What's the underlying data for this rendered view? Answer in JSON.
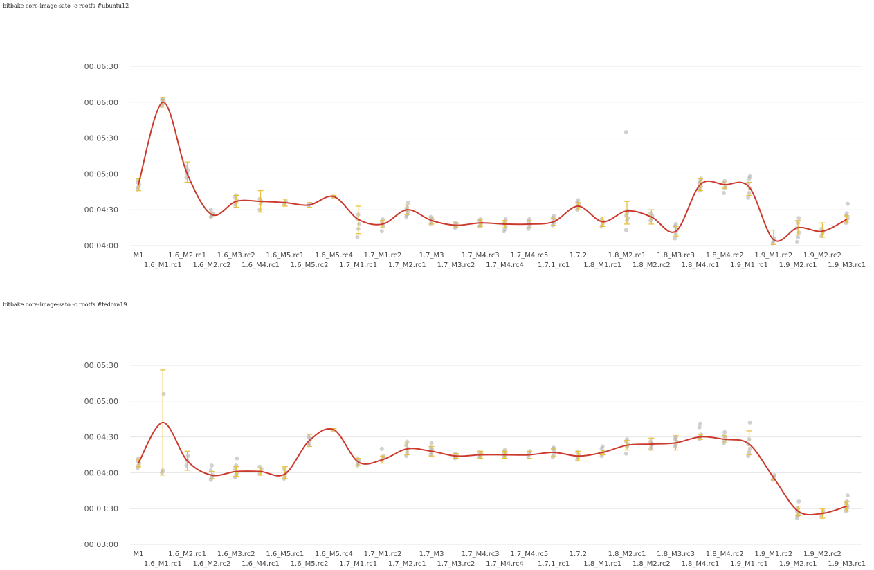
{
  "captions": {
    "chart1": "bitbake core-image-sato -c rootfs #ubuntu12",
    "chart2": "bitbake core-image-sato -c rootfs #fedora19"
  },
  "colors": {
    "line": "#cc3a2e",
    "errorbar": "#e8c040",
    "samples": "#9a9a9a",
    "grid": "#e6e6e6"
  },
  "chart_data": [
    {
      "type": "line",
      "title": "bitbake core-image-sato -c rootfs #ubuntu12",
      "ylabel": "",
      "xlabel": "",
      "ylim": [
        240,
        390
      ],
      "yticks": [
        "00:04:00",
        "00:04:30",
        "00:05:00",
        "00:05:30",
        "00:06:00",
        "00:06:30"
      ],
      "grid": true,
      "categories": [
        "M1",
        "1.6_M1.rc1",
        "1.6_M2.rc1",
        "1.6_M2.rc2",
        "1.6_M3.rc2",
        "1.6_M4.rc1",
        "1.6_M5.rc1",
        "1.6_M5.rc2",
        "1.6_M5.rc4",
        "1.7_M1.rc1",
        "1.7_M1.rc2",
        "1.7_M2.rc1",
        "1.7_M3",
        "1.7_M3.rc2",
        "1.7_M4.rc3",
        "1.7_M4.rc4",
        "1.7_M4.rc5",
        "1.7.1_rc1",
        "1.7.2",
        "1.8_M1.rc1",
        "1.8_M2.rc1",
        "1.8_M2.rc2",
        "1.8_M3.rc3",
        "1.8_M4.rc1",
        "1.8_M4.rc2",
        "1.9_M1.rc1",
        "1.9_M1.rc2",
        "1.9_M2.rc1",
        "1.9_M2.rc2",
        "1.9_M3.rc1"
      ],
      "series": [
        {
          "values": [
            291,
            360,
            300,
            266,
            277,
            277,
            276,
            274,
            281,
            262,
            258,
            270,
            261,
            257,
            259,
            258,
            258,
            260,
            273,
            260,
            269,
            264,
            252,
            291,
            291,
            289,
            245,
            255,
            252,
            262
          ],
          "error": [
            [
              286,
              296
            ],
            [
              356,
              364
            ],
            [
              293,
              310
            ],
            [
              264,
              268
            ],
            [
              272,
              282
            ],
            [
              268,
              286
            ],
            [
              273,
              279
            ],
            [
              272,
              276
            ],
            [
              280,
              282
            ],
            [
              250,
              273
            ],
            [
              255,
              261
            ],
            [
              266,
              274
            ],
            [
              258,
              264
            ],
            [
              255,
              259
            ],
            [
              256,
              262
            ],
            [
              255,
              261
            ],
            [
              255,
              261
            ],
            [
              257,
              263
            ],
            [
              270,
              276
            ],
            [
              256,
              264
            ],
            [
              258,
              277
            ],
            [
              258,
              270
            ],
            [
              248,
              256
            ],
            [
              286,
              296
            ],
            [
              288,
              294
            ],
            [
              282,
              293
            ],
            [
              241,
              253
            ],
            [
              249,
              261
            ],
            [
              247,
              259
            ],
            [
              259,
              265
            ]
          ],
          "samples": [
            [
              287,
              289,
              291,
              293,
              295
            ],
            [
              357,
              359,
              361,
              362,
              363
            ],
            [
              297,
              300,
              303,
              306
            ],
            [
              264,
              265,
              267,
              270
            ],
            [
              274,
              276,
              278,
              280,
              282
            ],
            [
              270,
              275,
              277,
              279
            ],
            [
              275,
              276,
              277
            ],
            [
              273,
              275
            ],
            [
              281
            ],
            [
              247,
              254,
              258,
              262,
              266
            ],
            [
              252,
              256,
              258,
              260,
              262
            ],
            [
              264,
              266,
              268,
              270,
              272,
              276
            ],
            [
              258,
              260,
              262,
              264
            ],
            [
              255,
              256,
              258,
              259
            ],
            [
              256,
              257,
              259,
              261,
              262
            ],
            [
              252,
              254,
              256,
              258,
              260,
              262
            ],
            [
              254,
              256,
              258,
              260,
              262
            ],
            [
              257,
              259,
              261,
              263,
              265
            ],
            [
              270,
              272,
              274,
              276,
              278
            ],
            [
              256,
              258,
              260,
              262
            ],
            [
              253,
              261,
              263,
              265,
              267,
              269,
              335
            ],
            [
              261,
              263,
              265,
              267
            ],
            [
              246,
              250,
              253,
              256,
              258
            ],
            [
              286,
              288,
              290,
              292,
              294,
              296
            ],
            [
              284,
              288,
              290,
              292,
              294
            ],
            [
              280,
              284,
              288,
              292,
              296,
              298
            ],
            [
              242,
              244,
              246
            ],
            [
              243,
              247,
              251,
              255,
              259,
              263
            ],
            [
              248,
              250,
              252,
              254
            ],
            [
              259,
              261,
              263,
              265,
              267,
              275
            ]
          ]
        }
      ]
    },
    {
      "type": "line",
      "title": "bitbake core-image-sato -c rootfs #fedora19",
      "ylabel": "",
      "xlabel": "",
      "ylim": [
        180,
        330
      ],
      "yticks": [
        "00:03:00",
        "00:03:30",
        "00:04:00",
        "00:04:30",
        "00:05:00",
        "00:05:30"
      ],
      "grid": true,
      "categories": [
        "M1",
        "1.6_M1.rc1",
        "1.6_M2.rc1",
        "1.6_M2.rc2",
        "1.6_M3.rc2",
        "1.6_M4.rc1",
        "1.6_M5.rc1",
        "1.6_M5.rc2",
        "1.6_M5.rc4",
        "1.7_M1.rc1",
        "1.7_M1.rc2",
        "1.7_M2.rc1",
        "1.7_M3",
        "1.7_M3.rc2",
        "1.7_M4.rc3",
        "1.7_M4.rc4",
        "1.7_M4.rc5",
        "1.7.1_rc1",
        "1.7.2",
        "1.8_M1.rc1",
        "1.8_M2.rc1",
        "1.8_M2.rc2",
        "1.8_M3.rc3",
        "1.8_M4.rc1",
        "1.8_M4.rc2",
        "1.9_M1.rc1",
        "1.9_M1.rc2",
        "1.9_M2.rc1",
        "1.9_M2.rc2",
        "1.9_M3.rc1"
      ],
      "series": [
        {
          "values": [
            248,
            282,
            250,
            238,
            241,
            241,
            239,
            267,
            276,
            249,
            251,
            260,
            258,
            254,
            255,
            255,
            255,
            257,
            254,
            257,
            263,
            264,
            265,
            270,
            268,
            264,
            236,
            208,
            206,
            212
          ],
          "error": [
            [
              245,
              251
            ],
            [
              238,
              326
            ],
            [
              242,
              258
            ],
            [
              235,
              241
            ],
            [
              237,
              245
            ],
            [
              238,
              244
            ],
            [
              235,
              245
            ],
            [
              262,
              272
            ],
            [
              275,
              277
            ],
            [
              246,
              252
            ],
            [
              248,
              254
            ],
            [
              255,
              265
            ],
            [
              254,
              262
            ],
            [
              252,
              256
            ],
            [
              252,
              258
            ],
            [
              252,
              258
            ],
            [
              252,
              258
            ],
            [
              254,
              260
            ],
            [
              250,
              258
            ],
            [
              255,
              259
            ],
            [
              259,
              267
            ],
            [
              259,
              269
            ],
            [
              259,
              271
            ],
            [
              268,
              272
            ],
            [
              265,
              271
            ],
            [
              255,
              275
            ],
            [
              234,
              238
            ],
            [
              204,
              212
            ],
            [
              202,
              210
            ],
            [
              208,
              216
            ]
          ],
          "samples": [
            [
              244,
              246,
              248,
              250,
              252
            ],
            [
              240,
              242,
              306
            ],
            [
              246,
              250,
              254
            ],
            [
              234,
              236,
              238,
              242,
              246
            ],
            [
              236,
              238,
              240,
              243,
              246,
              252
            ],
            [
              239,
              241,
              243,
              245
            ],
            [
              235,
              237,
              240,
              243
            ],
            [
              263,
              265,
              268,
              270
            ],
            [
              276
            ],
            [
              246,
              248,
              250,
              252
            ],
            [
              250,
              252,
              254,
              260
            ],
            [
              254,
              257,
              260,
              263,
              266
            ],
            [
              255,
              257,
              259,
              261,
              265
            ],
            [
              252,
              253,
              255,
              256
            ],
            [
              253,
              254,
              256,
              257
            ],
            [
              253,
              254,
              256,
              257,
              259
            ],
            [
              254,
              256,
              258
            ],
            [
              253,
              256,
              258,
              260,
              261
            ],
            [
              251,
              253,
              255,
              257
            ],
            [
              254,
              256,
              258,
              260,
              262
            ],
            [
              256,
              262,
              264,
              266,
              268
            ],
            [
              260,
              262,
              264,
              266
            ],
            [
              262,
              264,
              266,
              268,
              270
            ],
            [
              268,
              270,
              272,
              278,
              281
            ],
            [
              265,
              267,
              269,
              271,
              274
            ],
            [
              254,
              257,
              260,
              264,
              268,
              282
            ],
            [
              234,
              236,
              238
            ],
            [
              202,
              204,
              206,
              208,
              210,
              216
            ],
            [
              204,
              206,
              208
            ],
            [
              208,
              210,
              212,
              214,
              216,
              221
            ]
          ]
        }
      ]
    }
  ]
}
